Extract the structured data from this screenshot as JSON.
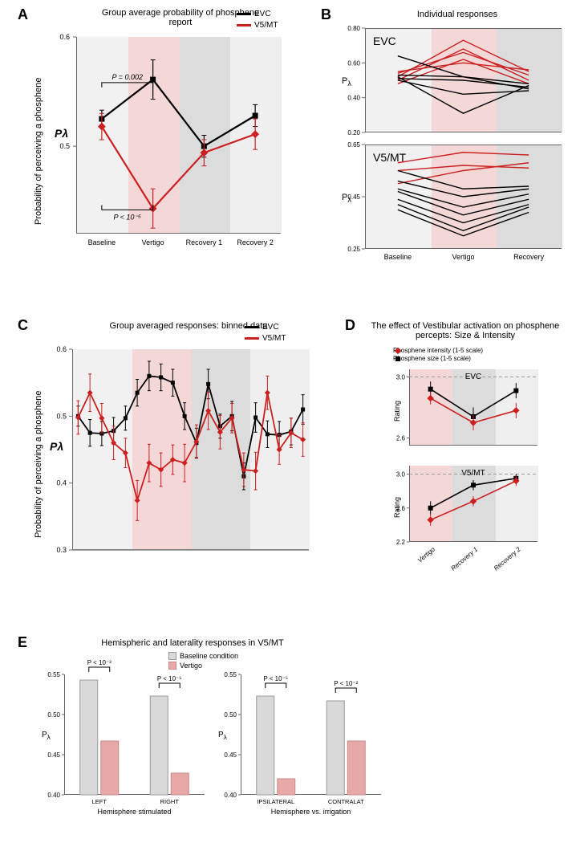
{
  "colors": {
    "evc": "#000000",
    "v5": "#cc1f1f",
    "band_baseline": "#f1f1f1",
    "band_vertigo": "#f4d7d7",
    "band_recovery1": "#dcdcdc",
    "band_recovery2": "#efefef",
    "bar_baseline": "#d9d9d9",
    "bar_vertigo": "#e7a8a8",
    "axis": "#666666"
  },
  "panelA": {
    "label": "A",
    "title": "Group average probability\nof phosphene report",
    "ylabel": "Probability of perceiving a phosphene",
    "ysymbol": "Pλ",
    "ylim": [
      0.42,
      0.6
    ],
    "yticks": [
      0.5,
      0.6
    ],
    "conditions": [
      "Baseline",
      "Vertigo",
      "Recovery 1",
      "Recovery 2"
    ],
    "series": {
      "EVC": {
        "y": [
          0.525,
          0.561,
          0.5,
          0.528
        ],
        "err": [
          0.008,
          0.018,
          0.01,
          0.01
        ]
      },
      "V5/MT": {
        "y": [
          0.518,
          0.443,
          0.494,
          0.511
        ],
        "err": [
          0.012,
          0.018,
          0.012,
          0.014
        ]
      }
    },
    "pvals": {
      "top": "P = 0.002",
      "bottom": "P < 10⁻⁵"
    },
    "legend": [
      "EVC",
      "V5/MT"
    ]
  },
  "panelB": {
    "label": "B",
    "title": "Individual responses",
    "conditions": [
      "Baseline",
      "Vertigo",
      "Recovery"
    ],
    "evc": {
      "name": "EVC",
      "ylim": [
        0.2,
        0.8
      ],
      "yticks": [
        0.2,
        0.4,
        0.6,
        0.8
      ],
      "lines": [
        {
          "y": [
            0.52,
            0.73,
            0.55
          ],
          "c": "v5"
        },
        {
          "y": [
            0.5,
            0.68,
            0.5
          ],
          "c": "v5"
        },
        {
          "y": [
            0.54,
            0.66,
            0.53
          ],
          "c": "v5"
        },
        {
          "y": [
            0.55,
            0.6,
            0.56
          ],
          "c": "v5"
        },
        {
          "y": [
            0.48,
            0.62,
            0.48
          ],
          "c": "v5"
        },
        {
          "y": [
            0.64,
            0.52,
            0.48
          ],
          "c": "evc"
        },
        {
          "y": [
            0.53,
            0.52,
            0.45
          ],
          "c": "evc"
        },
        {
          "y": [
            0.51,
            0.5,
            0.46
          ],
          "c": "evc"
        },
        {
          "y": [
            0.5,
            0.42,
            0.44
          ],
          "c": "evc"
        },
        {
          "y": [
            0.52,
            0.31,
            0.47
          ],
          "c": "evc"
        }
      ]
    },
    "v5": {
      "name": "V5/MT",
      "ylim": [
        0.25,
        0.65
      ],
      "yticks": [
        0.25,
        0.45,
        0.65
      ],
      "lines": [
        {
          "y": [
            0.58,
            0.62,
            0.61
          ],
          "c": "v5"
        },
        {
          "y": [
            0.55,
            0.57,
            0.56
          ],
          "c": "v5"
        },
        {
          "y": [
            0.5,
            0.55,
            0.58
          ],
          "c": "v5"
        },
        {
          "y": [
            0.55,
            0.48,
            0.49
          ],
          "c": "evc"
        },
        {
          "y": [
            0.51,
            0.45,
            0.48
          ],
          "c": "evc"
        },
        {
          "y": [
            0.48,
            0.41,
            0.46
          ],
          "c": "evc"
        },
        {
          "y": [
            0.47,
            0.38,
            0.44
          ],
          "c": "evc"
        },
        {
          "y": [
            0.44,
            0.35,
            0.42
          ],
          "c": "evc"
        },
        {
          "y": [
            0.42,
            0.32,
            0.41
          ],
          "c": "evc"
        },
        {
          "y": [
            0.4,
            0.3,
            0.39
          ],
          "c": "evc"
        }
      ]
    }
  },
  "panelC": {
    "label": "C",
    "title": "Group averaged responses:\nbinned data",
    "ylabel": "Probability of perceiving a phosphene",
    "ysymbol": "Pλ",
    "ylim": [
      0.3,
      0.6
    ],
    "yticks": [
      0.3,
      0.4,
      0.5,
      0.6
    ],
    "phases": [
      {
        "start": 0,
        "end": 5,
        "band": "band_baseline"
      },
      {
        "start": 5,
        "end": 10,
        "band": "band_vertigo"
      },
      {
        "start": 10,
        "end": 15,
        "band": "band_recovery1"
      },
      {
        "start": 15,
        "end": 20,
        "band": "band_recovery2"
      }
    ],
    "n_bins": 20,
    "series": {
      "EVC": {
        "y": [
          0.5,
          0.475,
          0.474,
          0.478,
          0.497,
          0.535,
          0.56,
          0.558,
          0.55,
          0.5,
          0.46,
          0.548,
          0.485,
          0.5,
          0.41,
          0.498,
          0.473,
          0.472,
          0.477,
          0.51
        ],
        "err": [
          0.015,
          0.02,
          0.018,
          0.02,
          0.018,
          0.02,
          0.022,
          0.02,
          0.02,
          0.02,
          0.022,
          0.022,
          0.018,
          0.022,
          0.02,
          0.022,
          0.02,
          0.02,
          0.02,
          0.022
        ]
      },
      "V5/MT": {
        "y": [
          0.498,
          0.535,
          0.497,
          0.46,
          0.445,
          0.374,
          0.43,
          0.42,
          0.435,
          0.43,
          0.462,
          0.508,
          0.476,
          0.497,
          0.42,
          0.418,
          0.535,
          0.45,
          0.475,
          0.465
        ],
        "err": [
          0.025,
          0.028,
          0.022,
          0.025,
          0.022,
          0.03,
          0.028,
          0.025,
          0.022,
          0.028,
          0.025,
          0.028,
          0.025,
          0.022,
          0.025,
          0.028,
          0.025,
          0.022,
          0.022,
          0.025
        ]
      }
    },
    "legend": [
      "EVC",
      "V5/MT"
    ]
  },
  "panelD": {
    "label": "D",
    "title": "The effect of Vestibular activation on\nphosphene percepts: Size & Intensity",
    "legend": [
      "Phosphene intensity (1-5 scale)",
      "Phosphene size (1-5 scale)"
    ],
    "conditions": [
      "Vertigo",
      "Recovery 1",
      "Recovery 2"
    ],
    "evc": {
      "name": "EVC",
      "ylim": [
        2.55,
        3.05
      ],
      "yticks": [
        2.6,
        3.0
      ],
      "ref": 3.0,
      "intensity": {
        "y": [
          2.86,
          2.7,
          2.78
        ],
        "err": [
          0.04,
          0.05,
          0.05
        ]
      },
      "size": {
        "y": [
          2.92,
          2.74,
          2.91
        ],
        "err": [
          0.05,
          0.06,
          0.05
        ]
      }
    },
    "v5": {
      "name": "V5/MT",
      "ylim": [
        2.2,
        3.1
      ],
      "yticks": [
        2.2,
        2.6,
        3.0
      ],
      "ref": 3.0,
      "intensity": {
        "y": [
          2.46,
          2.68,
          2.92
        ],
        "err": [
          0.07,
          0.06,
          0.06
        ]
      },
      "size": {
        "y": [
          2.6,
          2.87,
          2.95
        ],
        "err": [
          0.08,
          0.06,
          0.05
        ]
      }
    }
  },
  "panelE": {
    "label": "E",
    "title": "Hemispheric and laterality responses in V5/MT",
    "legend": [
      "Baseline condition",
      "Vertigo"
    ],
    "ylim": [
      0.4,
      0.55
    ],
    "yticks": [
      0.4,
      0.45,
      0.5,
      0.55
    ],
    "left": {
      "xlabel": "Hemisphere stimulated",
      "groups": [
        "LEFT",
        "RIGHT"
      ],
      "baseline": [
        0.543,
        0.523
      ],
      "vertigo": [
        0.467,
        0.427
      ],
      "pvals": [
        "P < 10⁻³",
        "P < 10⁻⁵"
      ]
    },
    "right": {
      "xlabel": "Hemisphere vs. irrigation",
      "groups": [
        "IPSILATERAL",
        "CONTRALAT"
      ],
      "baseline": [
        0.523,
        0.517
      ],
      "vertigo": [
        0.42,
        0.467
      ],
      "pvals": [
        "P < 10⁻⁵",
        "P < 10⁻²"
      ]
    }
  }
}
